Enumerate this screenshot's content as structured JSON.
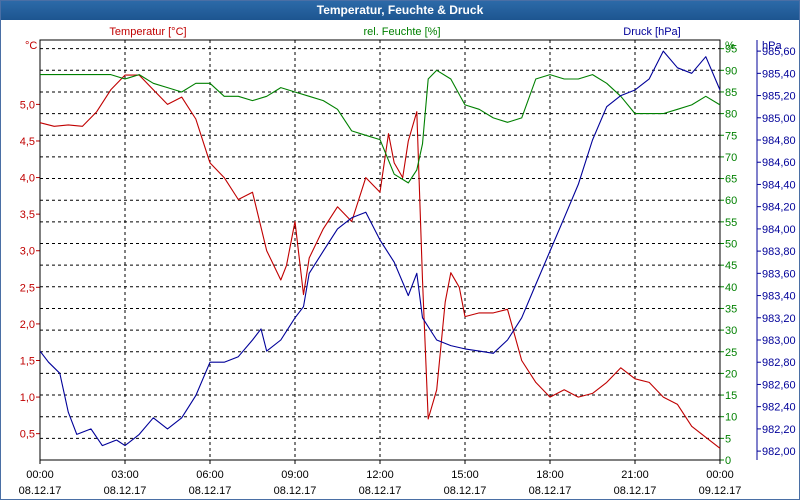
{
  "window": {
    "title": "Temperatur, Feuchte & Druck"
  },
  "colors": {
    "temperature": "#c00000",
    "humidity": "#008000",
    "pressure": "#000099",
    "grid": "#000000"
  },
  "chart_data": {
    "type": "line",
    "title": "Temperatur, Feuchte & Druck",
    "x": [
      "00:00",
      "03:00",
      "06:00",
      "09:00",
      "12:00",
      "15:00",
      "18:00",
      "21:00",
      "00:00"
    ],
    "x_dates": [
      "08.12.17",
      "08.12.17",
      "08.12.17",
      "08.12.17",
      "08.12.17",
      "08.12.17",
      "08.12.17",
      "08.12.17",
      "09.12.17"
    ],
    "x_range_hours": [
      0,
      24
    ],
    "axes": [
      {
        "id": "temp",
        "side": "left",
        "unit": "°C",
        "label": "Temperatur [°C]",
        "range": [
          0.14,
          5.88
        ],
        "ticks": [
          "0,5",
          "1,0",
          "1,5",
          "2,0",
          "2,5",
          "3,0",
          "3,5",
          "4,0",
          "4,5",
          "5,0"
        ]
      },
      {
        "id": "hum",
        "side": "right",
        "unit": "%",
        "label": "rel. Feuchte [%]",
        "range": [
          0,
          97
        ],
        "ticks": [
          "0",
          "5",
          "10",
          "15",
          "20",
          "25",
          "30",
          "35",
          "40",
          "45",
          "50",
          "55",
          "60",
          "65",
          "70",
          "75",
          "80",
          "85",
          "90",
          "95"
        ]
      },
      {
        "id": "pres",
        "side": "right",
        "unit": "hPa",
        "label": "Druck [hPa]",
        "range": [
          981.92,
          985.7
        ],
        "ticks": [
          "982,00",
          "982,20",
          "982,40",
          "982,60",
          "982,80",
          "983,00",
          "983,20",
          "983,40",
          "983,60",
          "983,80",
          "984,00",
          "984,20",
          "984,40",
          "984,60",
          "984,80",
          "985,00",
          "985,20",
          "985,40",
          "985,60"
        ]
      }
    ],
    "series": [
      {
        "name": "Temperatur [°C]",
        "axis": "temp",
        "points": [
          [
            0,
            4.75
          ],
          [
            0.5,
            4.7
          ],
          [
            1.0,
            4.72
          ],
          [
            1.5,
            4.7
          ],
          [
            2.0,
            4.9
          ],
          [
            2.5,
            5.2
          ],
          [
            3.0,
            5.4
          ],
          [
            3.5,
            5.4
          ],
          [
            4.0,
            5.2
          ],
          [
            4.5,
            5.0
          ],
          [
            5.0,
            5.1
          ],
          [
            5.5,
            4.8
          ],
          [
            6.0,
            4.2
          ],
          [
            6.5,
            4.0
          ],
          [
            7.0,
            3.7
          ],
          [
            7.5,
            3.8
          ],
          [
            8.0,
            3.0
          ],
          [
            8.5,
            2.6
          ],
          [
            8.7,
            2.8
          ],
          [
            9.0,
            3.4
          ],
          [
            9.3,
            2.4
          ],
          [
            9.5,
            2.9
          ],
          [
            10.0,
            3.3
          ],
          [
            10.5,
            3.6
          ],
          [
            11.0,
            3.4
          ],
          [
            11.5,
            4.0
          ],
          [
            12.0,
            3.8
          ],
          [
            12.3,
            4.6
          ],
          [
            12.5,
            4.2
          ],
          [
            12.8,
            4.0
          ],
          [
            13.0,
            4.5
          ],
          [
            13.3,
            4.9
          ],
          [
            13.5,
            2.6
          ],
          [
            13.7,
            0.7
          ],
          [
            14.0,
            1.1
          ],
          [
            14.3,
            2.3
          ],
          [
            14.5,
            2.7
          ],
          [
            14.8,
            2.5
          ],
          [
            15.0,
            2.1
          ],
          [
            15.5,
            2.15
          ],
          [
            16.0,
            2.15
          ],
          [
            16.5,
            2.2
          ],
          [
            17.0,
            1.5
          ],
          [
            17.5,
            1.2
          ],
          [
            18.0,
            1.0
          ],
          [
            18.5,
            1.1
          ],
          [
            19.0,
            1.0
          ],
          [
            19.5,
            1.05
          ],
          [
            20.0,
            1.2
          ],
          [
            20.5,
            1.4
          ],
          [
            21.0,
            1.25
          ],
          [
            21.5,
            1.2
          ],
          [
            22.0,
            1.0
          ],
          [
            22.5,
            0.9
          ],
          [
            23.0,
            0.6
          ],
          [
            23.5,
            0.45
          ],
          [
            24.0,
            0.3
          ]
        ]
      },
      {
        "name": "rel. Feuchte [%]",
        "axis": "hum",
        "points": [
          [
            0,
            89
          ],
          [
            1.0,
            89
          ],
          [
            2.0,
            89
          ],
          [
            2.5,
            89
          ],
          [
            3.0,
            88
          ],
          [
            3.5,
            89
          ],
          [
            4.0,
            87
          ],
          [
            4.5,
            86
          ],
          [
            5.0,
            85
          ],
          [
            5.5,
            87
          ],
          [
            6.0,
            87
          ],
          [
            6.5,
            84
          ],
          [
            7.0,
            84
          ],
          [
            7.5,
            83
          ],
          [
            8.0,
            84
          ],
          [
            8.5,
            86
          ],
          [
            9.0,
            85
          ],
          [
            9.5,
            84
          ],
          [
            10.0,
            83
          ],
          [
            10.5,
            81
          ],
          [
            11.0,
            76
          ],
          [
            11.5,
            75
          ],
          [
            12.0,
            74
          ],
          [
            12.5,
            66
          ],
          [
            13.0,
            64
          ],
          [
            13.3,
            67
          ],
          [
            13.5,
            73
          ],
          [
            13.7,
            88
          ],
          [
            14.0,
            90
          ],
          [
            14.5,
            88
          ],
          [
            15.0,
            82
          ],
          [
            15.5,
            81
          ],
          [
            16.0,
            79
          ],
          [
            16.5,
            78
          ],
          [
            17.0,
            79
          ],
          [
            17.5,
            88
          ],
          [
            18.0,
            89
          ],
          [
            18.5,
            88
          ],
          [
            19.0,
            88
          ],
          [
            19.5,
            89
          ],
          [
            20.0,
            87
          ],
          [
            20.5,
            84
          ],
          [
            21.0,
            80
          ],
          [
            21.5,
            80
          ],
          [
            22.0,
            80
          ],
          [
            22.5,
            81
          ],
          [
            23.0,
            82
          ],
          [
            23.5,
            84
          ],
          [
            24.0,
            82
          ]
        ]
      },
      {
        "name": "Druck [hPa]",
        "axis": "pres",
        "points": [
          [
            0,
            982.9
          ],
          [
            0.3,
            982.8
          ],
          [
            0.7,
            982.7
          ],
          [
            1.0,
            982.35
          ],
          [
            1.3,
            982.15
          ],
          [
            1.8,
            982.2
          ],
          [
            2.2,
            982.05
          ],
          [
            2.7,
            982.1
          ],
          [
            3.0,
            982.05
          ],
          [
            3.5,
            982.15
          ],
          [
            4.0,
            982.3
          ],
          [
            4.5,
            982.2
          ],
          [
            5.0,
            982.3
          ],
          [
            5.5,
            982.5
          ],
          [
            6.0,
            982.8
          ],
          [
            6.5,
            982.8
          ],
          [
            7.0,
            982.85
          ],
          [
            7.5,
            983.0
          ],
          [
            7.8,
            983.1
          ],
          [
            8.0,
            982.9
          ],
          [
            8.5,
            983.0
          ],
          [
            9.0,
            983.2
          ],
          [
            9.3,
            983.3
          ],
          [
            9.5,
            983.6
          ],
          [
            10.0,
            983.8
          ],
          [
            10.5,
            984.0
          ],
          [
            11.0,
            984.1
          ],
          [
            11.5,
            984.15
          ],
          [
            12.0,
            983.9
          ],
          [
            12.5,
            983.7
          ],
          [
            13.0,
            983.4
          ],
          [
            13.3,
            983.6
          ],
          [
            13.5,
            983.2
          ],
          [
            14.0,
            983.0
          ],
          [
            14.5,
            982.95
          ],
          [
            15.0,
            982.92
          ],
          [
            15.5,
            982.9
          ],
          [
            16.0,
            982.88
          ],
          [
            16.5,
            983.0
          ],
          [
            17.0,
            983.2
          ],
          [
            17.5,
            983.5
          ],
          [
            18.0,
            983.8
          ],
          [
            18.5,
            984.1
          ],
          [
            19.0,
            984.4
          ],
          [
            19.5,
            984.8
          ],
          [
            20.0,
            985.1
          ],
          [
            20.5,
            985.2
          ],
          [
            21.0,
            985.25
          ],
          [
            21.5,
            985.35
          ],
          [
            22.0,
            985.6
          ],
          [
            22.5,
            985.45
          ],
          [
            23.0,
            985.4
          ],
          [
            23.5,
            985.55
          ],
          [
            24.0,
            985.25
          ]
        ]
      }
    ]
  }
}
